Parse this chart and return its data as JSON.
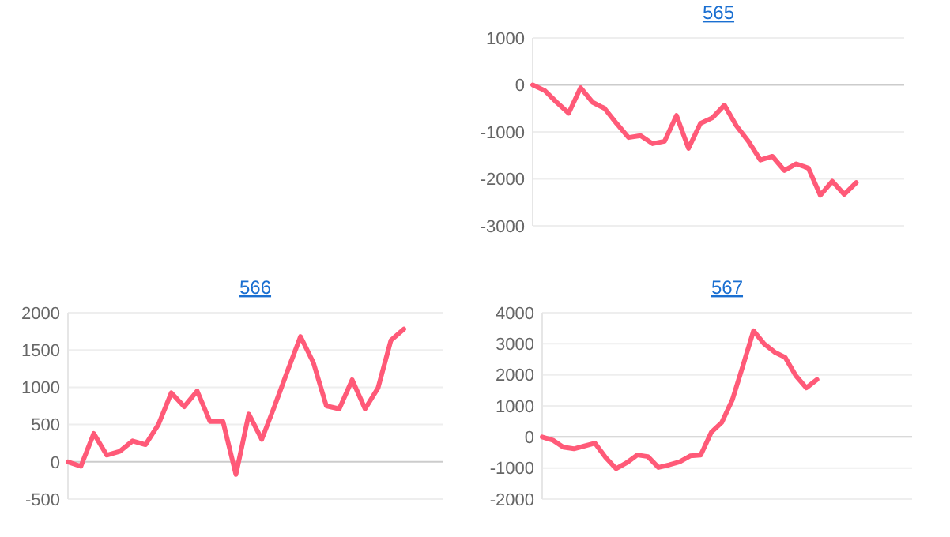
{
  "chart_data": [
    {
      "type": "line",
      "title": "565",
      "categories": [
        null,
        null,
        null,
        null,
        null,
        null,
        null,
        null,
        null,
        null,
        null,
        null,
        null,
        null,
        null,
        null,
        null,
        null,
        null,
        null,
        null,
        null,
        null,
        null,
        null,
        null,
        null,
        null,
        null,
        null,
        null,
        null
      ],
      "ylim": [
        -3000,
        1000
      ],
      "yticks": [
        -3000,
        -2000,
        -1000,
        0,
        1000
      ],
      "grid": "y",
      "marker": "none",
      "series": [
        {
          "color": "#ff5a78",
          "values": [
            0,
            -120,
            -370,
            -600,
            -60,
            -370,
            -500,
            -820,
            -1120,
            -1080,
            -1250,
            -1200,
            -650,
            -1350,
            -820,
            -700,
            -430,
            -870,
            -1200,
            -1600,
            -1520,
            -1820,
            -1680,
            -1770,
            -2350,
            -2050,
            -2330,
            -2080,
            null,
            null,
            null,
            null
          ]
        }
      ]
    },
    {
      "type": "line",
      "title": "566",
      "categories": [
        null,
        null,
        null,
        null,
        null,
        null,
        null,
        null,
        null,
        null,
        null,
        null,
        null,
        null,
        null,
        null,
        null,
        null,
        null,
        null,
        null,
        null,
        null,
        null,
        null,
        null,
        null,
        null,
        null,
        null
      ],
      "ylim": [
        -500,
        2000
      ],
      "yticks": [
        -500,
        0,
        500,
        1000,
        1500,
        2000
      ],
      "grid": "y",
      "marker": "none",
      "series": [
        {
          "color": "#ff5a78",
          "values": [
            0,
            -60,
            380,
            90,
            140,
            280,
            230,
            500,
            925,
            740,
            950,
            540,
            540,
            -170,
            640,
            300,
            750,
            1220,
            1680,
            1330,
            750,
            710,
            1100,
            710,
            990,
            1630,
            1780,
            null,
            null,
            null
          ]
        }
      ]
    },
    {
      "type": "line",
      "title": "567",
      "categories": [
        null,
        null,
        null,
        null,
        null,
        null,
        null,
        null,
        null,
        null,
        null,
        null,
        null,
        null,
        null,
        null,
        null,
        null,
        null,
        null,
        null,
        null,
        null,
        null,
        null,
        null,
        null,
        null,
        null,
        null,
        null,
        null,
        null,
        null,
        null,
        null
      ],
      "ylim": [
        -2000,
        4000
      ],
      "yticks": [
        -2000,
        -1000,
        0,
        1000,
        2000,
        3000,
        4000
      ],
      "grid": "y",
      "marker": "none",
      "series": [
        {
          "color": "#ff5a78",
          "values": [
            0,
            -100,
            -330,
            -380,
            -290,
            -200,
            -660,
            -1020,
            -830,
            -580,
            -630,
            -980,
            -900,
            -800,
            -610,
            -580,
            150,
            470,
            1200,
            2300,
            3420,
            3000,
            2730,
            2560,
            1970,
            1580,
            1850,
            null,
            null,
            null,
            null,
            null,
            null,
            null,
            null,
            null
          ]
        }
      ]
    }
  ]
}
